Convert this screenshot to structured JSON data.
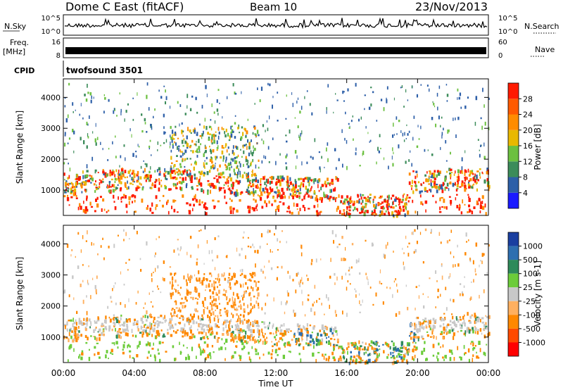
{
  "header": {
    "title": "Dome C East (fitACF)",
    "beam": "Beam 10",
    "date": "23/Nov/2013"
  },
  "noise_panel": {
    "left_label": "N.Sky",
    "left_ticks": [
      "10^5",
      "10^0"
    ],
    "right_ticks": [
      "10^5",
      "10^0"
    ],
    "right_label": "N.Search"
  },
  "freq_panel": {
    "label_top": "Freq.",
    "label_unit": "[MHz]",
    "left_ticks": [
      "16",
      "8"
    ],
    "right_ticks": [
      "60",
      "0"
    ],
    "right_label": "Nave"
  },
  "cpid_panel": {
    "label": "CPID",
    "value": "twofsound 3501"
  },
  "colors": {
    "power": [
      "#1a1aff",
      "#2d5fa8",
      "#3c8c5a",
      "#6cc040",
      "#e8b800",
      "#ff8c00",
      "#ff5a00",
      "#ff1a00"
    ],
    "velocity": [
      "#1a3fa0",
      "#2e6fb0",
      "#2e8a5a",
      "#6ccc3a",
      "#c8c8c8",
      "#ffb060",
      "#ff8800",
      "#ff4a00",
      "#ff0000"
    ]
  },
  "chart_data": [
    {
      "type": "heatmap",
      "id": "power",
      "ylabel": "Slant Range [km]",
      "yticks": [
        1000,
        2000,
        3000,
        4000
      ],
      "ylim": [
        180,
        4600
      ],
      "colorbar_label": "Power [dB]",
      "colorbar_ticks": [
        4,
        8,
        12,
        16,
        20,
        24,
        28
      ],
      "colorbar_range": [
        0,
        32
      ]
    },
    {
      "type": "heatmap",
      "id": "velocity",
      "ylabel": "Slant Range [km]",
      "yticks": [
        1000,
        2000,
        3000,
        4000
      ],
      "ylim": [
        180,
        4600
      ],
      "colorbar_label": "Velocity [m s-1]",
      "colorbar_ticks": [
        "1000",
        "500",
        "100",
        "25",
        "-25",
        "-100",
        "-500",
        "-1000"
      ]
    }
  ],
  "time_axis": {
    "xlabel": "Time UT",
    "xticks": [
      "00:00",
      "04:00",
      "08:00",
      "12:00",
      "16:00",
      "20:00",
      "00:00"
    ]
  }
}
